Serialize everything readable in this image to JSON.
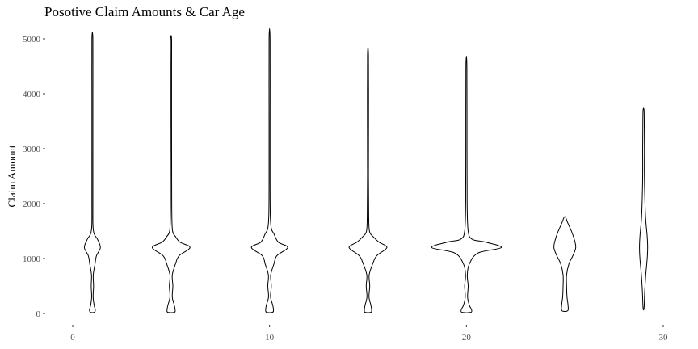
{
  "chart_data": {
    "type": "violin",
    "title": "Posotive Claim Amounts & Car Age",
    "xlabel": "",
    "ylabel": "Claim Amount",
    "xlim": [
      0,
      30
    ],
    "ylim": [
      0,
      5000
    ],
    "x_ticks": [
      0,
      10,
      20,
      30
    ],
    "y_ticks": [
      0,
      1000,
      2000,
      3000,
      4000,
      5000
    ],
    "grid": false,
    "violins": [
      {
        "x": 1,
        "min": 20,
        "max": 5000,
        "profile": [
          [
            20,
            0.12
          ],
          [
            60,
            0.2
          ],
          [
            150,
            0.12
          ],
          [
            300,
            0.05
          ],
          [
            500,
            0.08
          ],
          [
            700,
            0.06
          ],
          [
            900,
            0.18
          ],
          [
            1050,
            0.28
          ],
          [
            1200,
            0.55
          ],
          [
            1350,
            0.35
          ],
          [
            1450,
            0.12
          ],
          [
            1600,
            0.04
          ],
          [
            2000,
            0.03
          ],
          [
            3000,
            0.03
          ],
          [
            4000,
            0.03
          ],
          [
            5000,
            0.01
          ]
        ]
      },
      {
        "x": 5,
        "min": 20,
        "max": 5000,
        "profile": [
          [
            20,
            0.22
          ],
          [
            60,
            0.28
          ],
          [
            150,
            0.22
          ],
          [
            300,
            0.08
          ],
          [
            500,
            0.12
          ],
          [
            700,
            0.08
          ],
          [
            900,
            0.3
          ],
          [
            1050,
            0.55
          ],
          [
            1200,
            1.3
          ],
          [
            1300,
            0.6
          ],
          [
            1400,
            0.3
          ],
          [
            1500,
            0.1
          ],
          [
            1800,
            0.05
          ],
          [
            2400,
            0.04
          ],
          [
            3500,
            0.03
          ],
          [
            4500,
            0.03
          ],
          [
            5000,
            0.01
          ]
        ]
      },
      {
        "x": 10,
        "min": 20,
        "max": 5000,
        "profile": [
          [
            20,
            0.2
          ],
          [
            60,
            0.27
          ],
          [
            150,
            0.22
          ],
          [
            300,
            0.07
          ],
          [
            500,
            0.12
          ],
          [
            700,
            0.08
          ],
          [
            900,
            0.3
          ],
          [
            1050,
            0.5
          ],
          [
            1200,
            1.25
          ],
          [
            1300,
            0.6
          ],
          [
            1450,
            0.3
          ],
          [
            1550,
            0.12
          ],
          [
            1800,
            0.05
          ],
          [
            2400,
            0.03
          ],
          [
            3500,
            0.03
          ],
          [
            5000,
            0.01
          ]
        ]
      },
      {
        "x": 15,
        "min": 20,
        "max": 4700,
        "profile": [
          [
            20,
            0.2
          ],
          [
            60,
            0.25
          ],
          [
            150,
            0.2
          ],
          [
            300,
            0.07
          ],
          [
            500,
            0.12
          ],
          [
            700,
            0.08
          ],
          [
            900,
            0.32
          ],
          [
            1050,
            0.6
          ],
          [
            1200,
            1.3
          ],
          [
            1300,
            0.75
          ],
          [
            1400,
            0.35
          ],
          [
            1500,
            0.1
          ],
          [
            1800,
            0.05
          ],
          [
            2500,
            0.03
          ],
          [
            3500,
            0.04
          ],
          [
            4700,
            0.01
          ]
        ]
      },
      {
        "x": 20,
        "min": 20,
        "max": 4500,
        "profile": [
          [
            20,
            0.3
          ],
          [
            70,
            0.35
          ],
          [
            150,
            0.2
          ],
          [
            300,
            0.08
          ],
          [
            500,
            0.12
          ],
          [
            700,
            0.06
          ],
          [
            900,
            0.2
          ],
          [
            1100,
            0.8
          ],
          [
            1200,
            2.4
          ],
          [
            1300,
            1.3
          ],
          [
            1350,
            0.4
          ],
          [
            1500,
            0.12
          ],
          [
            2000,
            0.05
          ],
          [
            3000,
            0.04
          ],
          [
            4500,
            0.01
          ]
        ]
      },
      {
        "x": 25,
        "min": 50,
        "max": 1750,
        "profile": [
          [
            50,
            0.2
          ],
          [
            150,
            0.22
          ],
          [
            300,
            0.15
          ],
          [
            500,
            0.12
          ],
          [
            700,
            0.12
          ],
          [
            900,
            0.28
          ],
          [
            1050,
            0.55
          ],
          [
            1200,
            0.75
          ],
          [
            1350,
            0.65
          ],
          [
            1500,
            0.45
          ],
          [
            1650,
            0.2
          ],
          [
            1750,
            0.05
          ]
        ]
      },
      {
        "x": 29,
        "min": 100,
        "max": 3700,
        "profile": [
          [
            100,
            0.02
          ],
          [
            400,
            0.08
          ],
          [
            700,
            0.15
          ],
          [
            1000,
            0.25
          ],
          [
            1200,
            0.28
          ],
          [
            1400,
            0.25
          ],
          [
            1700,
            0.15
          ],
          [
            2000,
            0.1
          ],
          [
            2500,
            0.06
          ],
          [
            3000,
            0.06
          ],
          [
            3400,
            0.05
          ],
          [
            3700,
            0.03
          ]
        ]
      }
    ]
  }
}
